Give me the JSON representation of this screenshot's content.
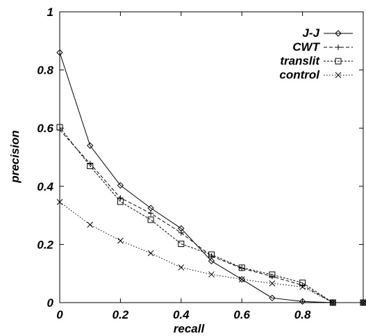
{
  "chart_data": {
    "type": "line",
    "title": "",
    "xlabel": "recall",
    "ylabel": "precision",
    "xlim": [
      0,
      1
    ],
    "ylim": [
      0,
      1
    ],
    "xticks": [
      "0",
      "0.2",
      "0.4",
      "0.6",
      "0.8"
    ],
    "yticks": [
      "0",
      "0.2",
      "0.4",
      "0.6",
      "0.8",
      "1"
    ],
    "grid": false,
    "legend_position": "top-right",
    "x": [
      0,
      0.1,
      0.2,
      0.3,
      0.4,
      0.5,
      0.6,
      0.7,
      0.8,
      0.9,
      1.0
    ],
    "series": [
      {
        "name": "J-J",
        "marker": "diamond",
        "line_style": "solid",
        "values": [
          0.86,
          0.54,
          0.403,
          0.325,
          0.255,
          0.143,
          0.08,
          0.016,
          0.004,
          0.0,
          0.0
        ]
      },
      {
        "name": "CWT",
        "marker": "plus",
        "line_style": "dashed",
        "values": [
          0.594,
          0.478,
          0.36,
          0.307,
          0.24,
          0.16,
          0.118,
          0.09,
          0.06,
          0.0,
          0.0
        ]
      },
      {
        "name": "translit",
        "marker": "square",
        "line_style": "dash-dot",
        "values": [
          0.603,
          0.47,
          0.347,
          0.285,
          0.202,
          0.165,
          0.12,
          0.096,
          0.068,
          0.0,
          0.0
        ]
      },
      {
        "name": "control",
        "marker": "cross",
        "line_style": "dotted",
        "values": [
          0.346,
          0.268,
          0.213,
          0.17,
          0.121,
          0.097,
          0.08,
          0.066,
          0.054,
          0.0,
          0.0
        ]
      }
    ]
  }
}
